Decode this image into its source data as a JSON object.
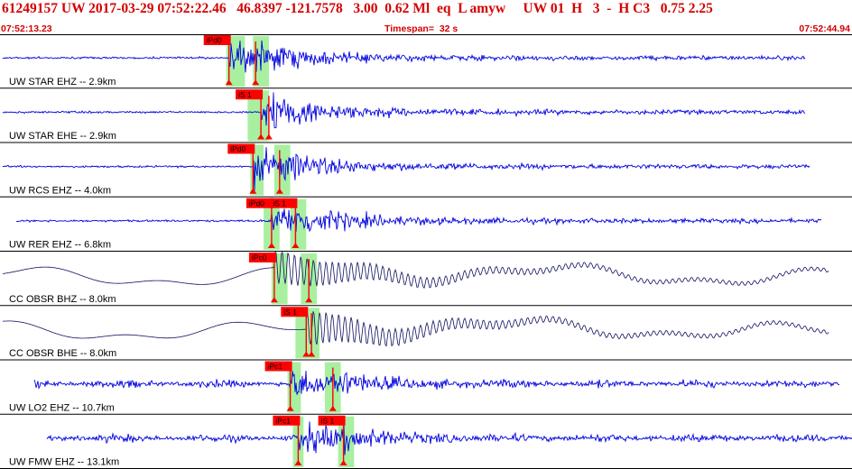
{
  "header": {
    "event_id": "61249157",
    "network": "UW",
    "datetime": "2017-03-29 07:52:22.46",
    "lat": "46.8397",
    "lon": "-121.7578",
    "depth": "3.00",
    "magnitude": "0.62",
    "mag_type": "Ml",
    "event_type": "eq",
    "local_flag": "L",
    "author": "amyw",
    "source": "UW",
    "version": "01",
    "quality": "H",
    "count": "3",
    "dash": "-",
    "pick_quality": "H C3",
    "rms": "0.75",
    "erh": "2.25"
  },
  "time_bar": {
    "start": "07:52:13.23",
    "timespan_label": "Timespan=",
    "timespan_value": "32 s",
    "end": "07:52:44.94"
  },
  "colors": {
    "header_text": "#d40000",
    "trace_high_freq": "#0000e0",
    "trace_broadband": "#101060",
    "pick_highlight": "#a8f0a0",
    "pick_flag": "#ff0000",
    "pick_line": "#ff0000",
    "separator": "#000000"
  },
  "traces": [
    {
      "label": "UW STAR EHZ -- 2.9km",
      "type": "hf",
      "picks": [
        {
          "text": "iPd0",
          "t": 8.6,
          "hl": [
            8.5,
            9.2
          ]
        },
        {
          "text": "",
          "t": 9.6,
          "hl": [
            9.5,
            10.1
          ]
        }
      ]
    },
    {
      "label": "UW STAR EHE -- 2.9km",
      "type": "hf",
      "picks": [
        {
          "text": "iS 1",
          "t": 9.8,
          "hl": [
            9.3,
            10.1
          ]
        },
        {
          "text": "",
          "t": 10.1,
          "hl": []
        }
      ]
    },
    {
      "label": "UW RCS EHZ -- 4.0km",
      "type": "hf",
      "picks": [
        {
          "text": "iPd0",
          "t": 9.5,
          "hl": [
            9.4,
            9.9
          ]
        },
        {
          "text": "",
          "t": 10.5,
          "hl": [
            10.3,
            10.9
          ]
        }
      ]
    },
    {
      "label": "UW RER EHZ -- 6.8km",
      "type": "hf",
      "picks": [
        {
          "text": "iPd0",
          "t": 10.2,
          "hl": [
            9.9,
            10.5
          ]
        },
        {
          "text": "iS 1",
          "t": 11.1,
          "hl": [
            10.9,
            11.5
          ]
        }
      ]
    },
    {
      "label": "CC OBSR BHZ -- 8.0km",
      "type": "bb",
      "picks": [
        {
          "text": "iPc0",
          "t": 10.3,
          "hl": [
            10.2,
            10.8
          ]
        },
        {
          "text": "",
          "t": 11.6,
          "hl": [
            11.3,
            11.9
          ]
        }
      ]
    },
    {
      "label": "CC OBSR BHE -- 8.0km",
      "type": "bb",
      "picks": [
        {
          "text": "iS 1",
          "t": 11.5,
          "hl": [
            11.1,
            11.6
          ]
        },
        {
          "text": "",
          "t": 11.7,
          "hl": [
            11.6,
            12.0
          ]
        }
      ]
    },
    {
      "label": "UW LO2 EHZ -- 10.7km",
      "type": "hf",
      "picks": [
        {
          "text": "iPc1",
          "t": 10.9,
          "hl": [
            10.8,
            11.3
          ]
        },
        {
          "text": "",
          "t": 12.5,
          "hl": [
            12.2,
            12.8
          ]
        }
      ]
    },
    {
      "label": "UW FMW EHZ -- 13.1km",
      "type": "hf",
      "picks": [
        {
          "text": "iPc1",
          "t": 11.2,
          "hl": [
            11.0,
            11.4
          ]
        },
        {
          "text": "iS 1",
          "t": 12.9,
          "hl": [
            12.7,
            13.3
          ]
        }
      ]
    }
  ]
}
